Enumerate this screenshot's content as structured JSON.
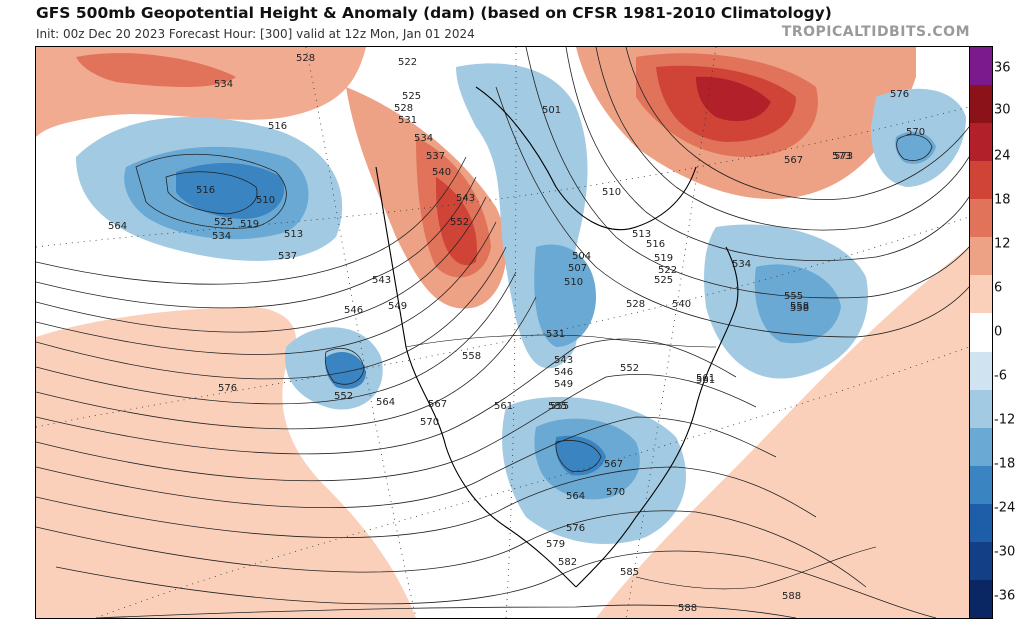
{
  "header": {
    "title": "GFS 500mb Geopotential Height & Anomaly (dam) (based on CFSR 1981-2010 Climatology)",
    "subtitle": "Init: 00z Dec 20 2023   Forecast Hour: [300]   valid at 12z Mon, Jan 01 2024",
    "brand": "TROPICALTIDBITS.COM"
  },
  "colorbar": {
    "ticks": [
      "36",
      "30",
      "24",
      "18",
      "12",
      "6",
      "0",
      "-6",
      "-12",
      "-18",
      "-24",
      "-30",
      "-36"
    ],
    "colors": [
      "#7a1a8c",
      "#8c1219",
      "#b2202a",
      "#cf4437",
      "#e0735a",
      "#eea285",
      "#fad0bb",
      "#ffffff",
      "#cfe4f0",
      "#a2cbe3",
      "#6aa9d4",
      "#3b84c2",
      "#1e5ea8",
      "#123f86",
      "#0b2763"
    ]
  },
  "contour_labels": [
    "534",
    "528",
    "522",
    "516",
    "510",
    "516",
    "564",
    "525",
    "519",
    "513",
    "534",
    "537",
    "543",
    "546",
    "549",
    "552",
    "564",
    "567",
    "570",
    "576",
    "525",
    "528",
    "531",
    "534",
    "537",
    "540",
    "543",
    "552",
    "501",
    "504",
    "507",
    "510",
    "510",
    "513",
    "516",
    "519",
    "522",
    "525",
    "528",
    "531",
    "534",
    "540",
    "543",
    "546",
    "549",
    "552",
    "555",
    "558",
    "558",
    "561",
    "561",
    "564",
    "567",
    "570",
    "573",
    "576",
    "579",
    "582",
    "585",
    "588",
    "588",
    "570",
    "573",
    "576",
    "567",
    "555",
    "558",
    "561",
    "555"
  ]
}
